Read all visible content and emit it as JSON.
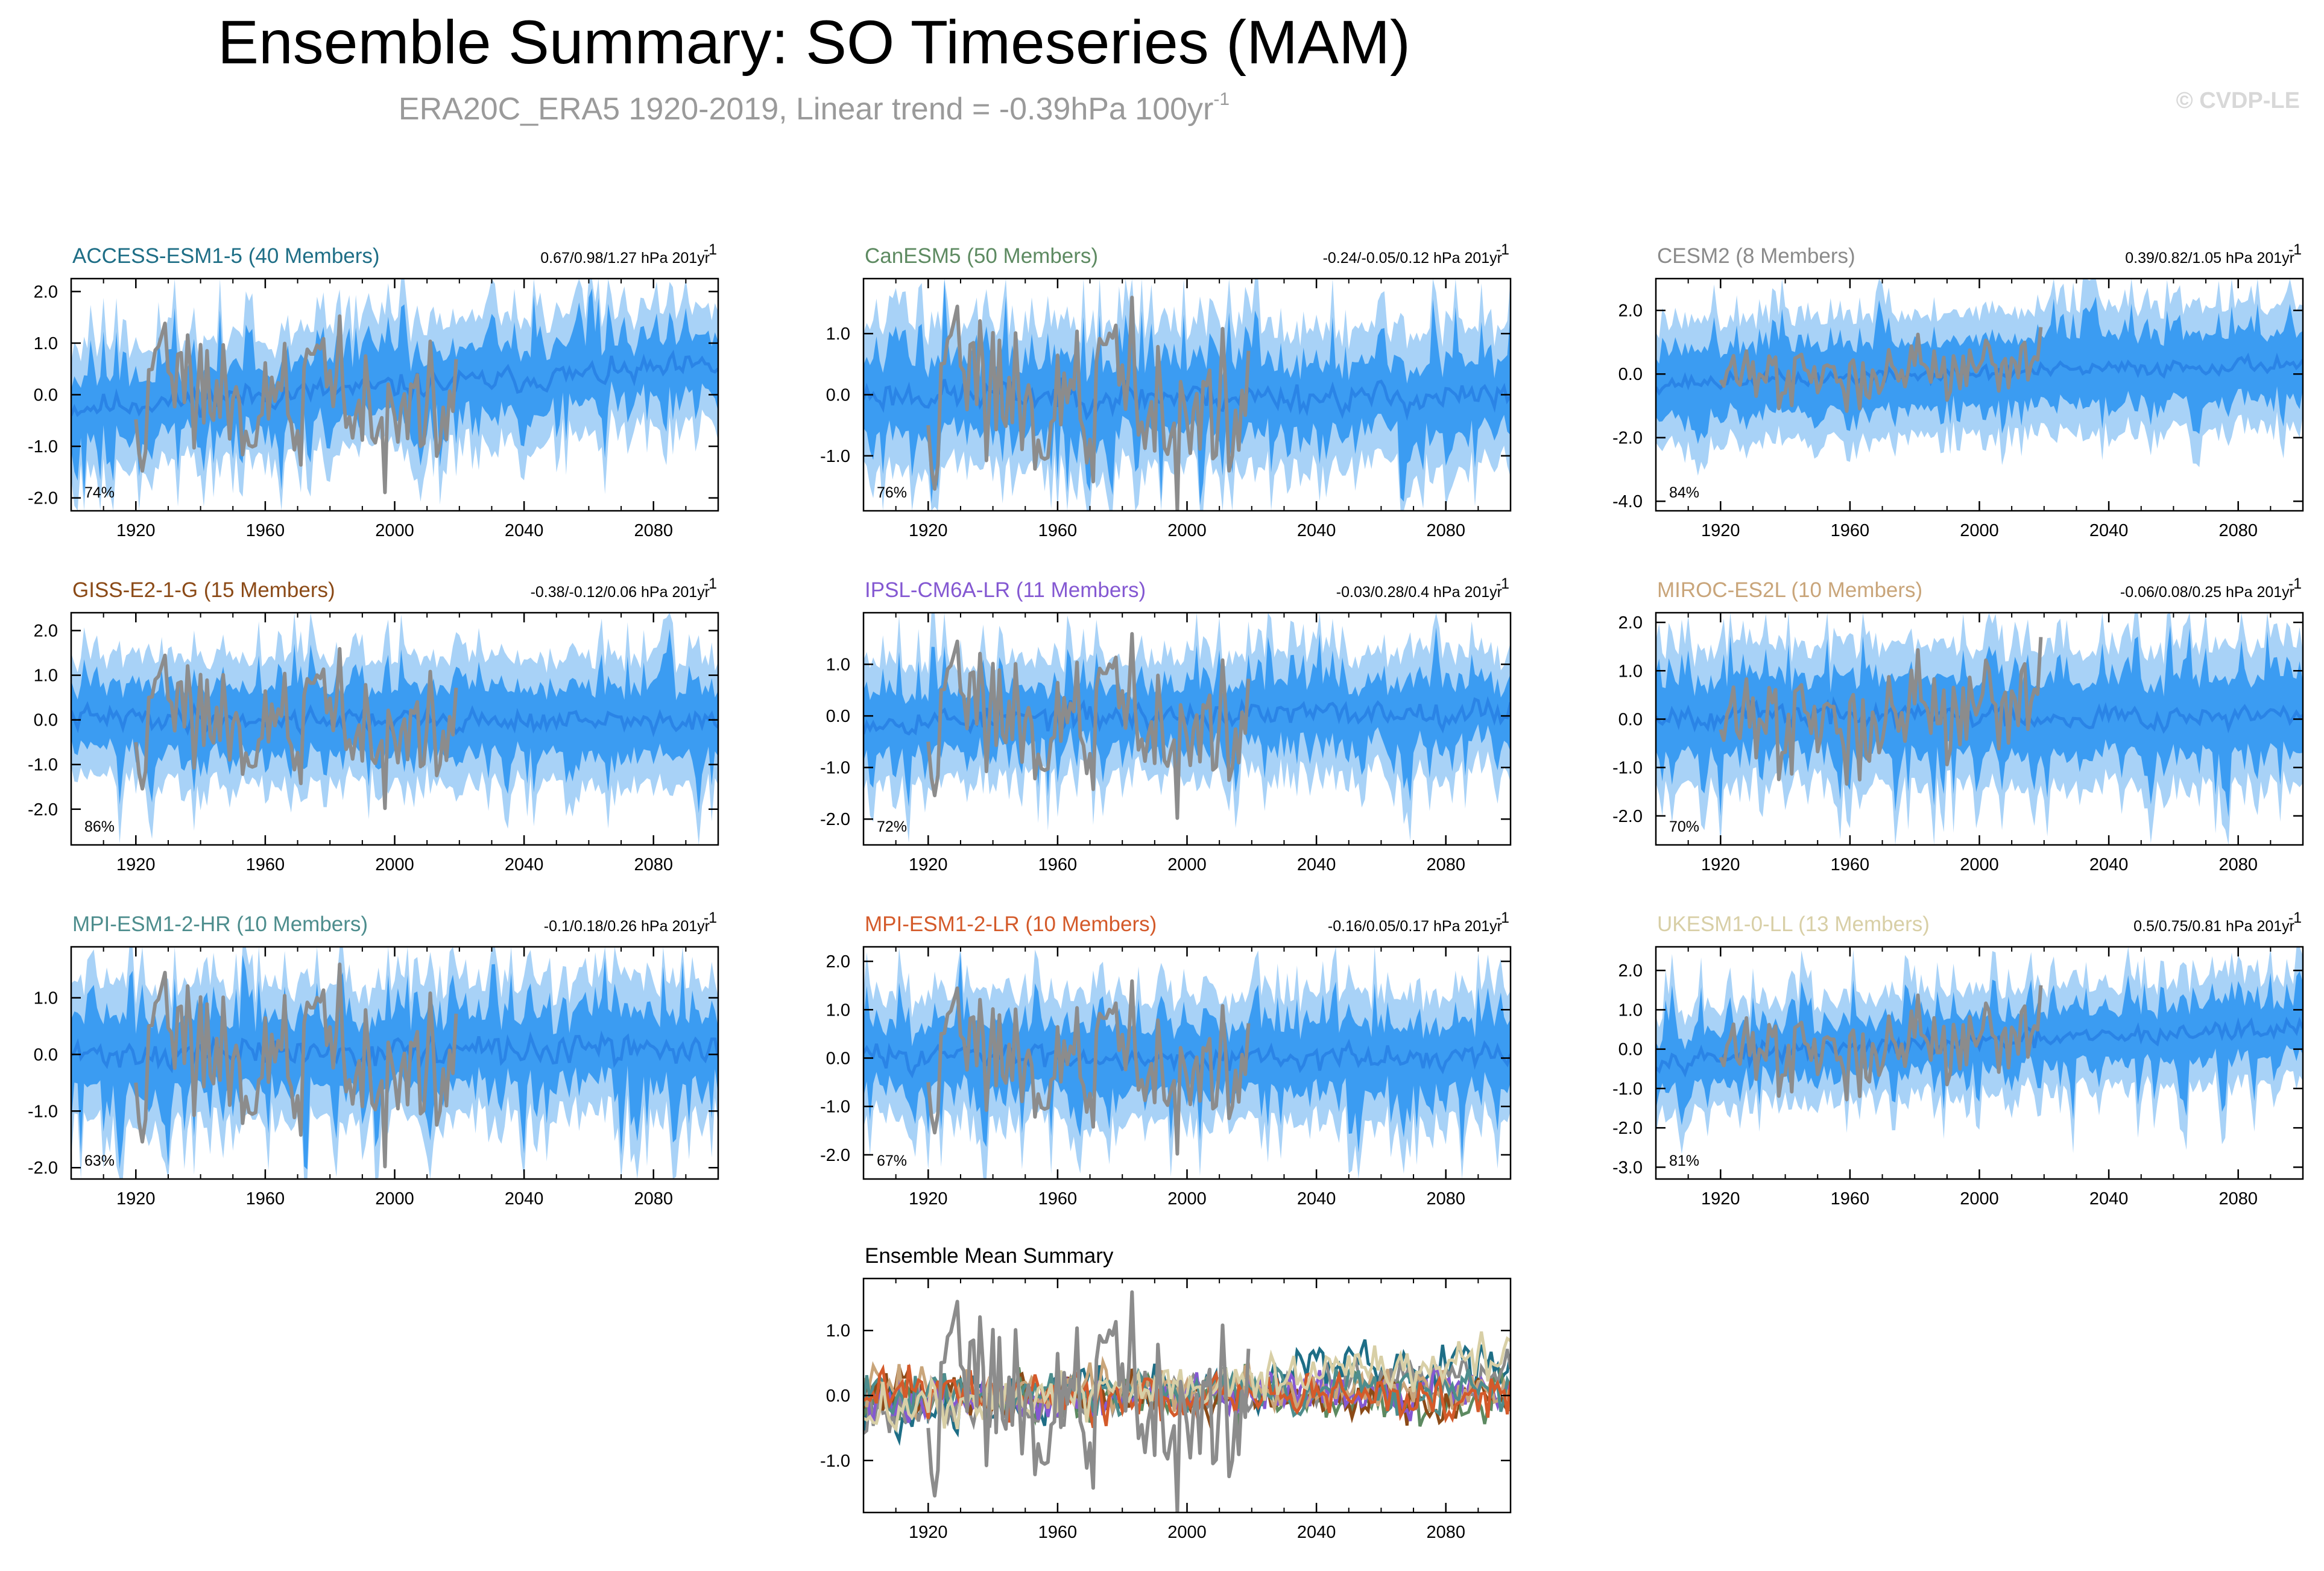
{
  "header": {
    "title": "Ensemble Summary: SO Timeseries (MAM)",
    "subtitle": "ERA20C_ERA5 1920-2019, Linear trend = -0.39hPa 100yr",
    "subtitle_superscript": "-1",
    "credit": "© CVDP-LE"
  },
  "colors": {
    "band_outer": "#a8d2f7",
    "band_inner": "#3b9cf2",
    "ensemble_mean": "#2a84e6",
    "observations": "#8c8c8c"
  },
  "chart_data": [
    {
      "type": "area",
      "title": "ACCESS-ESM1-5 (40 Members)",
      "title_color": "#1e6e86",
      "trend_label": "0.67/0.98/1.27 hPa 201yr",
      "trend_superscript": "-1",
      "percent": "74%",
      "x_range": [
        1900,
        2100
      ],
      "ylim": [
        -2.25,
        2.25
      ],
      "yticks": [
        2.0,
        1.0,
        0.0,
        -1.0,
        -2.0
      ],
      "ytick_labels": [
        "2.0",
        "1.0",
        "0.0",
        "-1.0",
        "-2.0"
      ],
      "xticks": [
        1920,
        1960,
        2000,
        2040,
        2080
      ],
      "xtick_labels": [
        "1920",
        "1960",
        "2000",
        "2040",
        "2080"
      ],
      "mean_start": -0.25,
      "mean_end": 0.55,
      "inner_halfwidth": 0.45,
      "outer_halfwidth": 0.95,
      "obs_amp": 1.1,
      "seed": 11
    },
    {
      "type": "area",
      "title": "CanESM5 (50 Members)",
      "title_color": "#5d8a61",
      "trend_label": "-0.24/-0.05/0.12 hPa 201yr",
      "trend_superscript": "-1",
      "percent": "76%",
      "x_range": [
        1900,
        2100
      ],
      "ylim": [
        -1.9,
        1.9
      ],
      "yticks": [
        1.0,
        0.0,
        -1.0
      ],
      "ytick_labels": [
        "1.0",
        "0.0",
        "-1.0"
      ],
      "xticks": [
        1920,
        1960,
        2000,
        2040,
        2080
      ],
      "xtick_labels": [
        "1920",
        "1960",
        "2000",
        "2040",
        "2080"
      ],
      "mean_start": 0.0,
      "mean_end": -0.05,
      "inner_halfwidth": 0.45,
      "outer_halfwidth": 0.95,
      "obs_amp": 1.15,
      "seed": 23
    },
    {
      "type": "area",
      "title": "CESM2 (8 Members)",
      "title_color": "#8a8a8a",
      "trend_label": "0.39/0.82/1.05 hPa 201yr",
      "trend_superscript": "-1",
      "percent": "84%",
      "x_range": [
        1900,
        2100
      ],
      "ylim": [
        -4.3,
        3.0
      ],
      "yticks": [
        2.0,
        0.0,
        -2.0,
        -4.0
      ],
      "ytick_labels": [
        "2.0",
        "0.0",
        "-2.0",
        "-4.0"
      ],
      "xticks": [
        1920,
        1960,
        2000,
        2040,
        2080
      ],
      "xtick_labels": [
        "1920",
        "1960",
        "2000",
        "2040",
        "2080"
      ],
      "mean_start": -0.3,
      "mean_end": 0.35,
      "inner_halfwidth": 0.9,
      "outer_halfwidth": 1.7,
      "obs_amp": 1.0,
      "seed": 37
    },
    {
      "type": "area",
      "title": "GISS-E2-1-G (15 Members)",
      "title_color": "#8b4a17",
      "trend_label": "-0.38/-0.12/0.06 hPa 201yr",
      "trend_superscript": "-1",
      "percent": "86%",
      "x_range": [
        1900,
        2100
      ],
      "ylim": [
        -2.8,
        2.4
      ],
      "yticks": [
        2.0,
        1.0,
        0.0,
        -1.0,
        -2.0
      ],
      "ytick_labels": [
        "2.0",
        "1.0",
        "0.0",
        "-1.0",
        "-2.0"
      ],
      "xticks": [
        1920,
        1960,
        2000,
        2040,
        2080
      ],
      "xtick_labels": [
        "1920",
        "1960",
        "2000",
        "2040",
        "2080"
      ],
      "mean_start": 0.05,
      "mean_end": -0.05,
      "inner_halfwidth": 0.6,
      "outer_halfwidth": 1.2,
      "obs_amp": 1.15,
      "seed": 41
    },
    {
      "type": "area",
      "title": "IPSL-CM6A-LR (11 Members)",
      "title_color": "#8458d2",
      "trend_label": "-0.03/0.28/0.4 hPa 201yr",
      "trend_superscript": "-1",
      "percent": "72%",
      "x_range": [
        1900,
        2100
      ],
      "ylim": [
        -2.5,
        2.0
      ],
      "yticks": [
        1.0,
        0.0,
        -1.0,
        -2.0
      ],
      "ytick_labels": [
        "1.0",
        "0.0",
        "-1.0",
        "-2.0"
      ],
      "xticks": [
        1920,
        1960,
        2000,
        2040,
        2080
      ],
      "xtick_labels": [
        "1920",
        "1960",
        "2000",
        "2040",
        "2080"
      ],
      "mean_start": -0.1,
      "mean_end": 0.1,
      "inner_halfwidth": 0.45,
      "outer_halfwidth": 0.95,
      "obs_amp": 1.15,
      "seed": 53
    },
    {
      "type": "area",
      "title": "MIROC-ES2L (10 Members)",
      "title_color": "#c9a57a",
      "trend_label": "-0.06/0.08/0.25 hPa 201yr",
      "trend_superscript": "-1",
      "percent": "70%",
      "x_range": [
        1900,
        2100
      ],
      "ylim": [
        -2.6,
        2.2
      ],
      "yticks": [
        2.0,
        1.0,
        0.0,
        -1.0,
        -2.0
      ],
      "ytick_labels": [
        "2.0",
        "1.0",
        "0.0",
        "-1.0",
        "-2.0"
      ],
      "xticks": [
        1920,
        1960,
        2000,
        2040,
        2080
      ],
      "xtick_labels": [
        "1920",
        "1960",
        "2000",
        "2040",
        "2080"
      ],
      "mean_start": 0.1,
      "mean_end": 0.05,
      "inner_halfwidth": 0.65,
      "outer_halfwidth": 1.25,
      "obs_amp": 1.15,
      "seed": 67
    },
    {
      "type": "area",
      "title": "MPI-ESM1-2-HR (10 Members)",
      "title_color": "#4d8d8d",
      "trend_label": "-0.1/0.18/0.26 hPa 201yr",
      "trend_superscript": "-1",
      "percent": "63%",
      "x_range": [
        1900,
        2100
      ],
      "ylim": [
        -2.2,
        1.9
      ],
      "yticks": [
        1.0,
        0.0,
        -1.0,
        -2.0
      ],
      "ytick_labels": [
        "1.0",
        "0.0",
        "-1.0",
        "-2.0"
      ],
      "xticks": [
        1920,
        1960,
        2000,
        2040,
        2080
      ],
      "xtick_labels": [
        "1920",
        "1960",
        "2000",
        "2040",
        "2080"
      ],
      "mean_start": 0.0,
      "mean_end": 0.1,
      "inner_halfwidth": 0.5,
      "outer_halfwidth": 1.0,
      "obs_amp": 1.15,
      "seed": 71
    },
    {
      "type": "area",
      "title": "MPI-ESM1-2-LR (10 Members)",
      "title_color": "#d45a2a",
      "trend_label": "-0.16/0.05/0.17 hPa 201yr",
      "trend_superscript": "-1",
      "percent": "67%",
      "x_range": [
        1900,
        2100
      ],
      "ylim": [
        -2.5,
        2.3
      ],
      "yticks": [
        2.0,
        1.0,
        0.0,
        -1.0,
        -2.0
      ],
      "ytick_labels": [
        "2.0",
        "1.0",
        "0.0",
        "-1.0",
        "-2.0"
      ],
      "xticks": [
        1920,
        1960,
        2000,
        2040,
        2080
      ],
      "xtick_labels": [
        "1920",
        "1960",
        "2000",
        "2040",
        "2080"
      ],
      "mean_start": 0.05,
      "mean_end": 0.0,
      "inner_halfwidth": 0.55,
      "outer_halfwidth": 1.1,
      "obs_amp": 1.15,
      "seed": 83
    },
    {
      "type": "area",
      "title": "UKESM1-0-LL (13 Members)",
      "title_color": "#d8cfa6",
      "trend_label": "0.5/0.75/0.81 hPa 201yr",
      "trend_superscript": "-1",
      "percent": "81%",
      "x_range": [
        1900,
        2100
      ],
      "ylim": [
        -3.3,
        2.6
      ],
      "yticks": [
        2.0,
        1.0,
        0.0,
        -1.0,
        -2.0,
        -3.0
      ],
      "ytick_labels": [
        "2.0",
        "1.0",
        "0.0",
        "-1.0",
        "-2.0",
        "-3.0"
      ],
      "xticks": [
        1920,
        1960,
        2000,
        2040,
        2080
      ],
      "xtick_labels": [
        "1920",
        "1960",
        "2000",
        "2040",
        "2080"
      ],
      "mean_start": -0.25,
      "mean_end": 0.55,
      "inner_halfwidth": 0.55,
      "outer_halfwidth": 1.1,
      "obs_amp": 1.1,
      "seed": 97
    },
    {
      "type": "line",
      "title": "Ensemble Mean Summary",
      "title_color": "#000000",
      "x_range": [
        1900,
        2100
      ],
      "ylim": [
        -1.8,
        1.8
      ],
      "yticks": [
        1.0,
        0.0,
        -1.0
      ],
      "ytick_labels": [
        "1.0",
        "0.0",
        "-1.0"
      ],
      "xticks": [
        1920,
        1960,
        2000,
        2040,
        2080
      ],
      "xtick_labels": [
        "1920",
        "1960",
        "2000",
        "2040",
        "2080"
      ],
      "obs_amp": 1.15,
      "seed": 5,
      "series": [
        {
          "name": "ACCESS-ESM1-5",
          "color": "#1e6e86",
          "mean_start": -0.25,
          "mean_end": 0.55
        },
        {
          "name": "CanESM5",
          "color": "#5d8a61",
          "mean_start": 0.0,
          "mean_end": -0.05
        },
        {
          "name": "CESM2",
          "color": "#8a8a8a",
          "mean_start": -0.3,
          "mean_end": 0.35
        },
        {
          "name": "GISS-E2-1-G",
          "color": "#8b4a17",
          "mean_start": 0.05,
          "mean_end": -0.05
        },
        {
          "name": "IPSL-CM6A-LR",
          "color": "#8458d2",
          "mean_start": -0.1,
          "mean_end": 0.1
        },
        {
          "name": "MIROC-ES2L",
          "color": "#c9a57a",
          "mean_start": 0.1,
          "mean_end": 0.05
        },
        {
          "name": "MPI-ESM1-2-HR",
          "color": "#4d8d8d",
          "mean_start": 0.0,
          "mean_end": 0.1
        },
        {
          "name": "MPI-ESM1-2-LR",
          "color": "#d45a2a",
          "mean_start": 0.05,
          "mean_end": 0.0
        },
        {
          "name": "UKESM1-0-LL",
          "color": "#d8cfa6",
          "mean_start": -0.25,
          "mean_end": 0.55
        }
      ]
    }
  ]
}
